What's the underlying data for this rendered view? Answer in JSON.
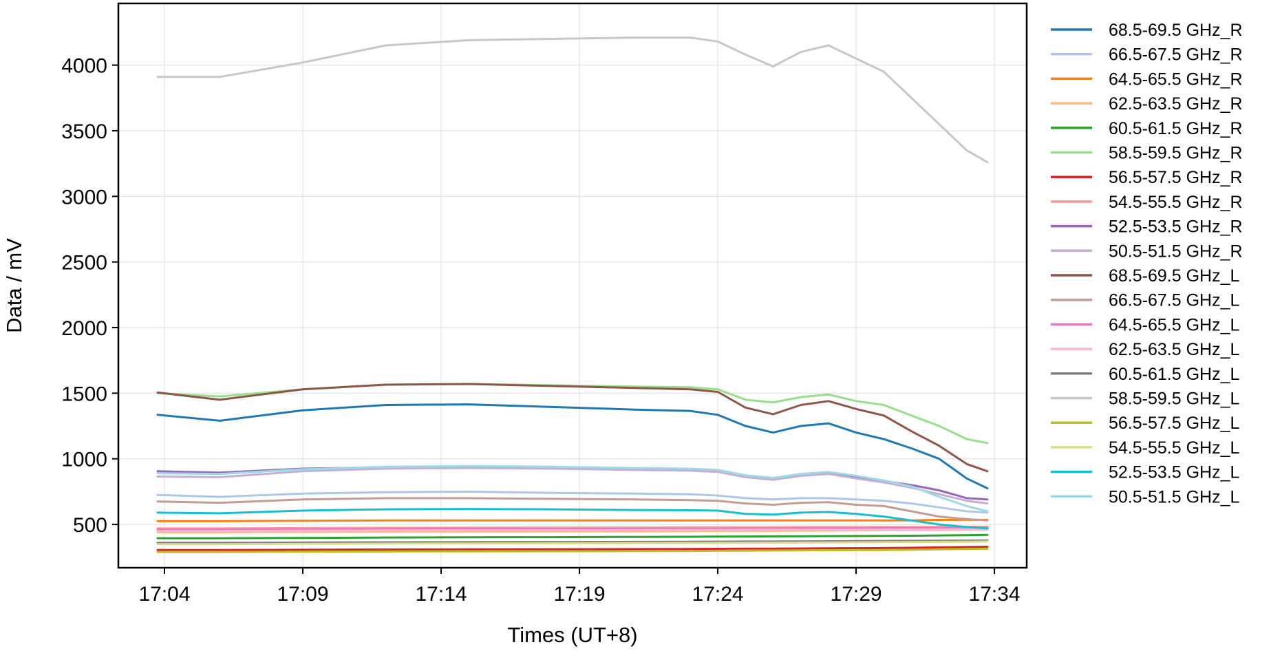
{
  "chart_data": {
    "type": "line",
    "xlabel": "Times (UT+8)",
    "ylabel": "Data / mV",
    "x_ticks": [
      "17:04",
      "17:09",
      "17:14",
      "17:19",
      "17:24",
      "17:29",
      "17:34"
    ],
    "y_ticks": [
      "500",
      "1000",
      "1500",
      "2000",
      "2500",
      "3000",
      "3500",
      "4000"
    ],
    "xlim": [
      "17:02:20",
      "17:35:10"
    ],
    "ylim": [
      170,
      4470
    ],
    "grid": true,
    "legend_position": "right-outside",
    "x": [
      "17:03:45",
      "17:06:00",
      "17:09:00",
      "17:12:00",
      "17:15:00",
      "17:18:00",
      "17:21:00",
      "17:23:00",
      "17:24:00",
      "17:25:00",
      "17:26:00",
      "17:27:00",
      "17:28:00",
      "17:29:00",
      "17:30:00",
      "17:31:00",
      "17:32:00",
      "17:33:00",
      "17:33:45"
    ],
    "series": [
      {
        "name": "68.5-69.5 GHz_R",
        "color": "#1f77b4",
        "values": [
          1335,
          1290,
          1370,
          1410,
          1415,
          1395,
          1375,
          1365,
          1335,
          1250,
          1200,
          1250,
          1270,
          1200,
          1150,
          1080,
          1000,
          850,
          775
        ]
      },
      {
        "name": "66.5-67.5 GHz_R",
        "color": "#aec7e8",
        "values": [
          725,
          710,
          735,
          745,
          750,
          740,
          735,
          730,
          720,
          700,
          690,
          700,
          700,
          690,
          680,
          660,
          630,
          600,
          590
        ]
      },
      {
        "name": "64.5-65.5 GHz_R",
        "color": "#ff7f0e",
        "values": [
          525,
          525,
          528,
          530,
          530,
          530,
          530,
          530,
          530,
          530,
          530,
          530,
          530,
          530,
          530,
          530,
          535,
          535,
          535
        ]
      },
      {
        "name": "62.5-63.5 GHz_R",
        "color": "#ffbb78",
        "values": [
          440,
          440,
          442,
          444,
          445,
          446,
          447,
          448,
          449,
          450,
          450,
          452,
          453,
          455,
          456,
          457,
          458,
          460,
          460
        ]
      },
      {
        "name": "60.5-61.5 GHz_R",
        "color": "#2ca02c",
        "values": [
          395,
          395,
          397,
          400,
          402,
          403,
          405,
          406,
          407,
          408,
          409,
          410,
          411,
          412,
          413,
          414,
          416,
          418,
          420
        ]
      },
      {
        "name": "58.5-59.5 GHz_R",
        "color": "#98df8a",
        "values": [
          1500,
          1475,
          1530,
          1565,
          1570,
          1560,
          1550,
          1545,
          1530,
          1450,
          1430,
          1470,
          1490,
          1440,
          1410,
          1330,
          1250,
          1150,
          1120
        ]
      },
      {
        "name": "56.5-57.5 GHz_R",
        "color": "#d62728",
        "values": [
          305,
          305,
          307,
          309,
          310,
          311,
          312,
          313,
          314,
          315,
          316,
          317,
          318,
          319,
          320,
          322,
          325,
          328,
          330
        ]
      },
      {
        "name": "54.5-55.5 GHz_R",
        "color": "#ff9896",
        "values": [
          470,
          470,
          472,
          474,
          475,
          476,
          477,
          478,
          478,
          479,
          479,
          480,
          480,
          480,
          481,
          481,
          482,
          482,
          482
        ]
      },
      {
        "name": "52.5-53.5 GHz_R",
        "color": "#9467bd",
        "values": [
          905,
          895,
          925,
          935,
          935,
          930,
          925,
          920,
          910,
          870,
          850,
          880,
          890,
          860,
          830,
          800,
          760,
          700,
          690
        ]
      },
      {
        "name": "50.5-51.5 GHz_R",
        "color": "#c5b0d5",
        "values": [
          865,
          860,
          905,
          925,
          930,
          925,
          915,
          910,
          900,
          860,
          840,
          870,
          885,
          850,
          820,
          780,
          730,
          680,
          660
        ]
      },
      {
        "name": "68.5-69.5 GHz_L",
        "color": "#8c564b",
        "values": [
          1505,
          1450,
          1530,
          1565,
          1570,
          1555,
          1540,
          1530,
          1510,
          1390,
          1340,
          1410,
          1440,
          1380,
          1330,
          1210,
          1100,
          960,
          905
        ]
      },
      {
        "name": "66.5-67.5 GHz_L",
        "color": "#c49c94",
        "values": [
          675,
          665,
          690,
          700,
          700,
          695,
          690,
          685,
          680,
          660,
          650,
          665,
          670,
          650,
          640,
          600,
          560,
          540,
          530
        ]
      },
      {
        "name": "64.5-65.5 GHz_L",
        "color": "#e377c2",
        "values": [
          460,
          460,
          462,
          464,
          465,
          466,
          467,
          468,
          468,
          469,
          469,
          470,
          470,
          470,
          471,
          471,
          472,
          472,
          472
        ]
      },
      {
        "name": "62.5-63.5 GHz_L",
        "color": "#f7b6d2",
        "values": [
          450,
          450,
          452,
          454,
          455,
          456,
          457,
          458,
          458,
          459,
          459,
          460,
          460,
          460,
          461,
          461,
          462,
          462,
          462
        ]
      },
      {
        "name": "60.5-61.5 GHz_L",
        "color": "#7f7f7f",
        "values": [
          360,
          360,
          362,
          364,
          365,
          366,
          367,
          368,
          369,
          370,
          370,
          371,
          372,
          373,
          374,
          375,
          376,
          377,
          378
        ]
      },
      {
        "name": "58.5-59.5 GHz_L",
        "color": "#c7c7c7",
        "values": [
          3910,
          3910,
          4020,
          4150,
          4190,
          4200,
          4210,
          4210,
          4180,
          4080,
          3990,
          4100,
          4150,
          4050,
          3950,
          3750,
          3550,
          3350,
          3260
        ]
      },
      {
        "name": "56.5-57.5 GHz_L",
        "color": "#bcbd22",
        "values": [
          290,
          290,
          292,
          294,
          295,
          296,
          297,
          298,
          299,
          300,
          301,
          302,
          303,
          304,
          305,
          307,
          310,
          313,
          315
        ]
      },
      {
        "name": "54.5-55.5 GHz_L",
        "color": "#dbdb8d",
        "values": [
          350,
          350,
          352,
          354,
          355,
          356,
          357,
          358,
          359,
          360,
          361,
          362,
          363,
          364,
          365,
          366,
          367,
          368,
          370
        ]
      },
      {
        "name": "52.5-53.5 GHz_L",
        "color": "#17becf",
        "values": [
          590,
          585,
          605,
          615,
          618,
          615,
          610,
          608,
          605,
          580,
          575,
          590,
          595,
          580,
          560,
          530,
          500,
          480,
          470
        ]
      },
      {
        "name": "50.5-51.5 GHz_L",
        "color": "#9edae5",
        "values": [
          890,
          885,
          920,
          940,
          945,
          940,
          930,
          925,
          915,
          875,
          855,
          885,
          900,
          870,
          835,
          790,
          710,
          640,
          600
        ]
      }
    ]
  }
}
